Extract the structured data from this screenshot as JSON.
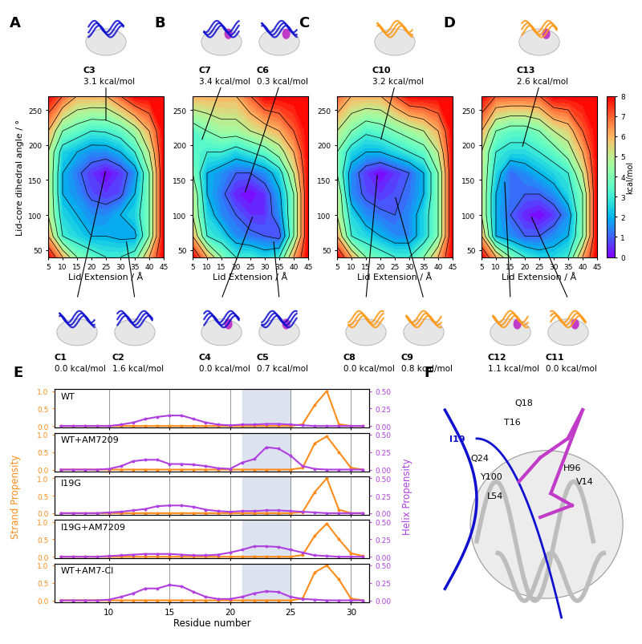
{
  "chart_data": [
    {
      "type": "contour",
      "panel": "A",
      "color": "#1010d0",
      "xlabel": "Lid Extension / Å",
      "ylabel": "Lid-core dihedral angle / °",
      "x": [
        5,
        10,
        15,
        20,
        25,
        30,
        35,
        40,
        45
      ],
      "y": [
        40,
        70,
        100,
        130,
        160,
        190,
        220,
        270
      ],
      "z": [
        [
          8,
          6,
          4,
          3.5,
          3,
          3,
          3.5,
          6,
          8
        ],
        [
          6,
          3,
          2.5,
          2,
          2,
          1.8,
          1.8,
          4,
          8
        ],
        [
          5,
          2.5,
          2,
          1.5,
          1.5,
          2,
          2.5,
          4,
          8
        ],
        [
          5,
          2,
          1.5,
          0.8,
          0.5,
          0.8,
          2,
          4,
          8
        ],
        [
          5,
          2,
          1.2,
          0.5,
          0,
          0.5,
          1.5,
          4,
          8
        ],
        [
          5,
          2.5,
          2,
          1.5,
          1.5,
          2,
          3,
          5,
          8
        ],
        [
          6,
          4,
          3.5,
          3,
          3.1,
          3.5,
          4.5,
          6,
          8
        ],
        [
          8,
          7,
          6,
          6,
          6,
          7,
          8,
          8,
          8
        ]
      ],
      "xlim": [
        5,
        45
      ],
      "xticks": [
        5,
        10,
        15,
        20,
        25,
        30,
        35,
        40,
        45
      ],
      "ylim": [
        40,
        270
      ],
      "yticks": [
        50,
        100,
        150,
        200,
        250
      ],
      "top_clusters": [
        {
          "name": "C3",
          "energy": "3.1 kcal/mol",
          "x": 25,
          "y": 232
        }
      ],
      "bottom_clusters": [
        {
          "name": "C1",
          "energy": "0.0 kcal/mol",
          "x": 25,
          "y": 165
        },
        {
          "name": "C2",
          "energy": "1.6 kcal/mol",
          "x": 32,
          "y": 65
        }
      ]
    },
    {
      "type": "contour",
      "panel": "B",
      "color": "#1010d0",
      "xlabel": "Lid Extension / Å",
      "x": [
        5,
        10,
        15,
        20,
        25,
        30,
        35,
        40,
        45
      ],
      "y": [
        40,
        70,
        100,
        130,
        160,
        190,
        220,
        270
      ],
      "z": [
        [
          8,
          6,
          4,
          3,
          3,
          2.5,
          3,
          6,
          8
        ],
        [
          6,
          3,
          2.5,
          1.5,
          1.2,
          1.0,
          0.7,
          4,
          8
        ],
        [
          5,
          2.5,
          1.5,
          1,
          0.5,
          0.5,
          1.5,
          4,
          8
        ],
        [
          5,
          2,
          1.2,
          0.3,
          0,
          0.5,
          1.8,
          4,
          8
        ],
        [
          4,
          2,
          1.5,
          1,
          1,
          1.5,
          2.5,
          5,
          8
        ],
        [
          3.5,
          3,
          3,
          2.5,
          3,
          3.5,
          4.5,
          6,
          8
        ],
        [
          3.4,
          4,
          4.5,
          4.5,
          5,
          5.5,
          6,
          7,
          8
        ],
        [
          6,
          6,
          6,
          6,
          7,
          8,
          8,
          8,
          8
        ]
      ],
      "xlim": [
        5,
        45
      ],
      "xticks": [
        5,
        10,
        15,
        20,
        25,
        30,
        35,
        40,
        45
      ],
      "ylim": [
        40,
        270
      ],
      "yticks": [
        50,
        100,
        150,
        200,
        250
      ],
      "top_clusters": [
        {
          "name": "C7",
          "energy": "3.4 kcal/mol",
          "x": 8,
          "y": 205
        },
        {
          "name": "C6",
          "energy": "0.3 kcal/mol",
          "x": 23,
          "y": 130
        }
      ],
      "bottom_clusters": [
        {
          "name": "C4",
          "energy": "0.0 kcal/mol",
          "x": 26,
          "y": 100
        },
        {
          "name": "C5",
          "energy": "0.7 kcal/mol",
          "x": 33,
          "y": 65
        }
      ]
    },
    {
      "type": "contour",
      "panel": "C",
      "color": "#ff9a1a",
      "xlabel": "Lid Extension / Å",
      "x": [
        5,
        10,
        15,
        20,
        25,
        30,
        35,
        40,
        45
      ],
      "y": [
        40,
        70,
        100,
        130,
        160,
        190,
        220,
        270
      ],
      "z": [
        [
          8,
          6,
          4,
          3.5,
          3,
          3,
          4,
          6,
          8
        ],
        [
          6,
          3,
          2.5,
          2,
          1.5,
          1.5,
          2.5,
          4,
          8
        ],
        [
          5,
          2.5,
          1.5,
          1.2,
          1,
          1.5,
          2.5,
          4,
          8
        ],
        [
          5,
          1.5,
          0.8,
          0.5,
          0.8,
          1.2,
          2,
          4,
          8
        ],
        [
          4,
          1.5,
          0.5,
          0,
          0.5,
          1,
          2,
          4,
          8
        ],
        [
          4,
          2.5,
          2,
          2,
          2.5,
          3,
          3.5,
          5,
          8
        ],
        [
          5,
          4,
          3.2,
          3.5,
          4,
          4.5,
          5,
          6,
          8
        ],
        [
          7,
          6,
          6,
          6,
          7,
          8,
          8,
          8,
          8
        ]
      ],
      "xlim": [
        5,
        45
      ],
      "xticks": [
        5,
        10,
        15,
        20,
        25,
        30,
        35,
        40,
        45
      ],
      "ylim": [
        40,
        270
      ],
      "yticks": [
        50,
        100,
        150,
        200,
        250
      ],
      "top_clusters": [
        {
          "name": "C10",
          "energy": "3.2 kcal/mol",
          "x": 20,
          "y": 205
        }
      ],
      "bottom_clusters": [
        {
          "name": "C8",
          "energy": "0.0 kcal/mol",
          "x": 19,
          "y": 160
        },
        {
          "name": "C9",
          "energy": "0.8 kcal/mol",
          "x": 25,
          "y": 128
        }
      ]
    },
    {
      "type": "contour",
      "panel": "D",
      "color": "#ff9a1a",
      "xlabel": "Lid Extension / Å",
      "x": [
        5,
        10,
        15,
        20,
        25,
        30,
        35,
        40,
        45
      ],
      "y": [
        40,
        70,
        100,
        130,
        160,
        190,
        220,
        270
      ],
      "z": [
        [
          8,
          6,
          4,
          3,
          2.5,
          2.5,
          3,
          6,
          8
        ],
        [
          6,
          2,
          1.5,
          1,
          1,
          1.5,
          2,
          4,
          8
        ],
        [
          5,
          2,
          1,
          0.3,
          0,
          0.5,
          1.5,
          4,
          8
        ],
        [
          5,
          2,
          1.2,
          1,
          1,
          1.5,
          2.5,
          4,
          8
        ],
        [
          5,
          2.5,
          1.1,
          1.5,
          2,
          2.5,
          3,
          5,
          8
        ],
        [
          5,
          3,
          2.6,
          2.6,
          3,
          3.5,
          4.5,
          6,
          8
        ],
        [
          6,
          4,
          3.5,
          3.5,
          4,
          5,
          5.5,
          7,
          8
        ],
        [
          8,
          7,
          7,
          7,
          7,
          8,
          8,
          8,
          8
        ]
      ],
      "xlim": [
        5,
        45
      ],
      "xticks": [
        5,
        10,
        15,
        20,
        25,
        30,
        35,
        40,
        45
      ],
      "ylim": [
        40,
        270
      ],
      "yticks": [
        50,
        100,
        150,
        200,
        250
      ],
      "colorbar": {
        "lim": [
          0,
          8
        ],
        "ticks": [
          0,
          1,
          2,
          3,
          4,
          5,
          6,
          7,
          8
        ],
        "label": "kcal/mol"
      },
      "top_clusters": [
        {
          "name": "C13",
          "energy": "2.6 kcal/mol",
          "x": 19,
          "y": 195
        }
      ],
      "bottom_clusters": [
        {
          "name": "C12",
          "energy": "1.1 kcal/mol",
          "x": 13,
          "y": 150
        },
        {
          "name": "C11",
          "energy": "0.0 kcal/mol",
          "x": 22,
          "y": 100
        }
      ]
    },
    {
      "type": "line",
      "panel": "E",
      "xlabel": "Residue number",
      "ylabel": "Strand Propensity",
      "y2label": "Helix Propensity",
      "x": [
        6,
        7,
        8,
        9,
        10,
        11,
        12,
        13,
        14,
        15,
        16,
        17,
        18,
        19,
        20,
        21,
        22,
        23,
        24,
        25,
        26,
        27,
        28,
        29,
        30,
        31
      ],
      "xlim": [
        5.5,
        31.5
      ],
      "xticks": [
        10,
        15,
        20,
        25,
        30
      ],
      "grid": true,
      "highlight": [
        21,
        25
      ],
      "ylim": [
        -0.05,
        1.05
      ],
      "yticks": [
        {
          "value": 0,
          "label": "0.0"
        },
        {
          "value": 0.5,
          "label": "0.5"
        },
        {
          "value": 1,
          "label": "1.0"
        }
      ],
      "y2lim": [
        -0.025,
        0.525
      ],
      "y2ticks": [
        {
          "value": 0,
          "label": "0.00"
        },
        {
          "value": 0.25,
          "label": "0.25"
        },
        {
          "value": 0.5,
          "label": "0.50"
        }
      ],
      "rows": [
        {
          "title": "WT",
          "series": [
            {
              "color": "#ff8c1a",
              "values": [
                0,
                0,
                0,
                0,
                0,
                0,
                0,
                0,
                0,
                0,
                0,
                0,
                0,
                0,
                0,
                0,
                0,
                0,
                0,
                0,
                0.05,
                0.6,
                1.0,
                0.05,
                0,
                0
              ]
            },
            {
              "color": "#b040e0",
              "axis": "y2",
              "values": [
                0,
                0,
                0,
                0,
                0,
                0.02,
                0.05,
                0.1,
                0.13,
                0.15,
                0.15,
                0.1,
                0.05,
                0.02,
                0.01,
                0.02,
                0.02,
                0.03,
                0.03,
                0.02,
                0.01,
                0,
                0,
                0,
                0,
                0
              ]
            }
          ]
        },
        {
          "title": "WT+AM7209",
          "series": [
            {
              "color": "#ff8c1a",
              "values": [
                0,
                0,
                0,
                0,
                0,
                0,
                0,
                0,
                0,
                0,
                0,
                0,
                0,
                0,
                0,
                0,
                0,
                0,
                0,
                0,
                0.05,
                0.75,
                0.95,
                0.5,
                0.05,
                0
              ]
            },
            {
              "color": "#b040e0",
              "axis": "y2",
              "values": [
                0,
                0,
                0,
                0,
                0.01,
                0.05,
                0.12,
                0.14,
                0.14,
                0.08,
                0.08,
                0.07,
                0.05,
                0.02,
                0.01,
                0.1,
                0.15,
                0.32,
                0.3,
                0.2,
                0.05,
                0.01,
                0,
                0,
                0,
                0
              ]
            }
          ]
        },
        {
          "title": "I19G",
          "series": [
            {
              "color": "#ff8c1a",
              "values": [
                0,
                0,
                0,
                0,
                0,
                0,
                0,
                0,
                0,
                0,
                0,
                0,
                0,
                0,
                0,
                0,
                0,
                0,
                0,
                0,
                0.03,
                0.6,
                1.0,
                0.1,
                0,
                0
              ]
            },
            {
              "color": "#b040e0",
              "axis": "y2",
              "values": [
                0,
                0,
                0,
                0,
                0.01,
                0.02,
                0.04,
                0.06,
                0.1,
                0.11,
                0.11,
                0.09,
                0.05,
                0.03,
                0.02,
                0.03,
                0.03,
                0.04,
                0.04,
                0.03,
                0.02,
                0.01,
                0,
                0,
                0,
                0
              ]
            }
          ]
        },
        {
          "title": "I19G+AM7209",
          "series": [
            {
              "color": "#ff8c1a",
              "values": [
                0,
                0,
                0,
                0,
                0,
                0,
                0,
                0,
                0,
                0,
                0,
                0,
                0,
                0,
                0,
                0,
                0,
                0,
                0,
                0,
                0.05,
                0.6,
                0.95,
                0.5,
                0.1,
                0.02
              ]
            },
            {
              "color": "#b040e0",
              "axis": "y2",
              "values": [
                0,
                0,
                0,
                0,
                0.01,
                0.02,
                0.03,
                0.04,
                0.04,
                0.04,
                0.03,
                0.02,
                0.02,
                0.03,
                0.06,
                0.1,
                0.15,
                0.15,
                0.14,
                0.1,
                0.06,
                0.02,
                0.01,
                0,
                0,
                0
              ]
            }
          ]
        },
        {
          "title": "WT+AM7-Cl",
          "series": [
            {
              "color": "#ff8c1a",
              "values": [
                0,
                0,
                0,
                0,
                0,
                0,
                0,
                0,
                0,
                0,
                0,
                0,
                0,
                0,
                0,
                0,
                0,
                0,
                0,
                0,
                0.05,
                0.8,
                1.0,
                0.6,
                0.05,
                0
              ]
            },
            {
              "color": "#b040e0",
              "axis": "y2",
              "values": [
                0,
                0,
                0,
                0,
                0.01,
                0.05,
                0.1,
                0.17,
                0.17,
                0.22,
                0.2,
                0.12,
                0.05,
                0.02,
                0.02,
                0.05,
                0.1,
                0.13,
                0.12,
                0.05,
                0.02,
                0.01,
                0,
                0,
                0,
                0
              ]
            }
          ]
        }
      ]
    }
  ],
  "structure": {
    "panel": "F",
    "labels": [
      {
        "text": "Q18",
        "color": "#000000"
      },
      {
        "text": "T16",
        "color": "#000000"
      },
      {
        "text": "I19",
        "color": "#1010d0"
      },
      {
        "text": "H96",
        "color": "#000000"
      },
      {
        "text": "Q24",
        "color": "#000000"
      },
      {
        "text": "Y100",
        "color": "#000000"
      },
      {
        "text": "V14",
        "color": "#000000"
      },
      {
        "text": "L54",
        "color": "#000000"
      }
    ]
  }
}
